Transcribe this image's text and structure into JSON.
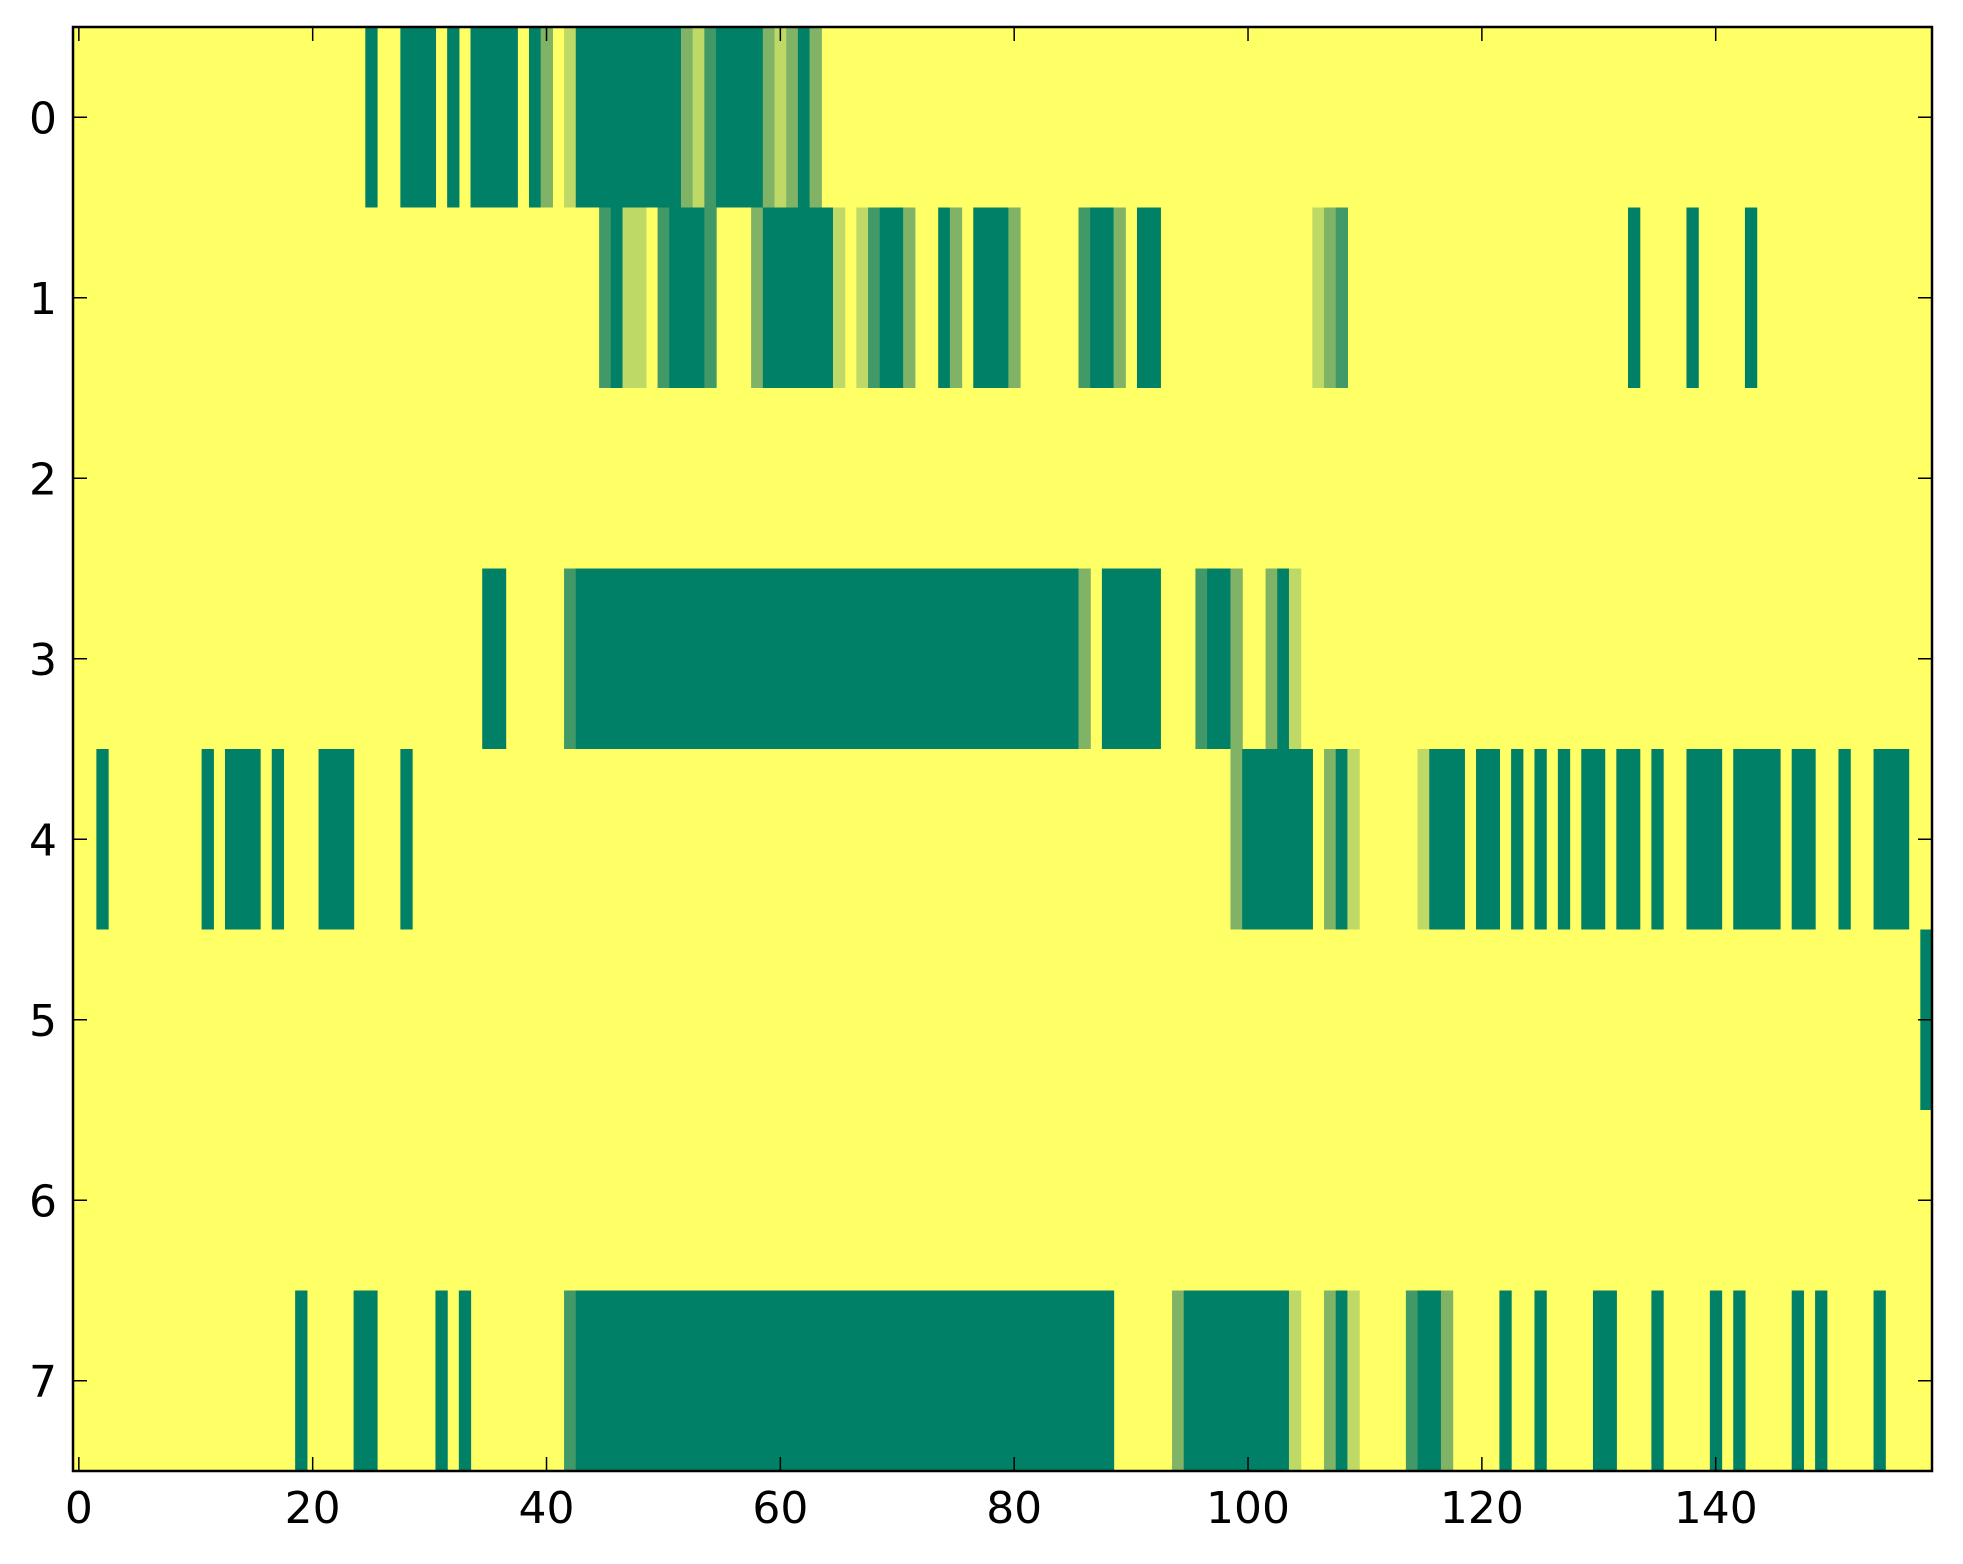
{
  "chart_data": {
    "type": "heatmap",
    "title": "",
    "xlabel": "",
    "ylabel": "",
    "xlim": [
      -0.5,
      158.5
    ],
    "ylim": [
      7.5,
      -0.5
    ],
    "x_ticks": [
      0,
      20,
      40,
      60,
      80,
      100,
      120,
      140
    ],
    "y_ticks": [
      0,
      1,
      2,
      3,
      4,
      5,
      6,
      7
    ],
    "colors": {
      "background": "#ffff66",
      "level_1": "#008066",
      "level_0_75": "#409966",
      "level_0_5": "#80b366",
      "level_0_25": "#bfd966"
    },
    "rows": [
      {
        "row": 0,
        "cells": [
          [
            25,
            1
          ],
          [
            28,
            1
          ],
          [
            29,
            1
          ],
          [
            30,
            1
          ],
          [
            32,
            1
          ],
          [
            34,
            1
          ],
          [
            35,
            1
          ],
          [
            36,
            1
          ],
          [
            37,
            1
          ],
          [
            39,
            1
          ],
          [
            40,
            0.5
          ],
          [
            42,
            0.25
          ],
          [
            43,
            1
          ],
          [
            44,
            1
          ],
          [
            45,
            1
          ],
          [
            46,
            1
          ],
          [
            47,
            1
          ],
          [
            48,
            1
          ],
          [
            49,
            1
          ],
          [
            50,
            1
          ],
          [
            51,
            1
          ],
          [
            52,
            0.5
          ],
          [
            53,
            0.25
          ],
          [
            54,
            0.75
          ],
          [
            55,
            1
          ],
          [
            56,
            1
          ],
          [
            57,
            1
          ],
          [
            58,
            1
          ],
          [
            59,
            0.5
          ],
          [
            60,
            0.25
          ],
          [
            61,
            0.5
          ],
          [
            62,
            1
          ],
          [
            63,
            0.5
          ]
        ]
      },
      {
        "row": 1,
        "cells": [
          [
            45,
            0.75
          ],
          [
            46,
            1
          ],
          [
            47,
            0.25
          ],
          [
            48,
            0.25
          ],
          [
            50,
            0.75
          ],
          [
            51,
            1
          ],
          [
            52,
            1
          ],
          [
            53,
            1
          ],
          [
            54,
            0.75
          ],
          [
            58,
            0.5
          ],
          [
            59,
            1
          ],
          [
            60,
            1
          ],
          [
            61,
            1
          ],
          [
            62,
            1
          ],
          [
            63,
            1
          ],
          [
            64,
            1
          ],
          [
            65,
            0.25
          ],
          [
            67,
            0.25
          ],
          [
            68,
            0.75
          ],
          [
            69,
            1
          ],
          [
            70,
            1
          ],
          [
            71,
            0.5
          ],
          [
            74,
            1
          ],
          [
            75,
            0.5
          ],
          [
            77,
            1
          ],
          [
            78,
            1
          ],
          [
            79,
            1
          ],
          [
            80,
            0.5
          ],
          [
            86,
            0.75
          ],
          [
            87,
            1
          ],
          [
            88,
            1
          ],
          [
            89,
            0.5
          ],
          [
            91,
            1
          ],
          [
            92,
            1
          ],
          [
            106,
            0.25
          ],
          [
            107,
            0.5
          ],
          [
            108,
            0.75
          ],
          [
            133,
            1
          ],
          [
            138,
            1
          ],
          [
            143,
            1
          ]
        ]
      },
      {
        "row": 2,
        "cells": []
      },
      {
        "row": 3,
        "cells": [
          [
            35,
            1
          ],
          [
            36,
            1
          ],
          [
            42,
            0.75
          ],
          [
            43,
            1
          ],
          [
            44,
            1
          ],
          [
            45,
            1
          ],
          [
            46,
            1
          ],
          [
            47,
            1
          ],
          [
            48,
            1
          ],
          [
            49,
            1
          ],
          [
            50,
            1
          ],
          [
            51,
            1
          ],
          [
            52,
            1
          ],
          [
            53,
            1
          ],
          [
            54,
            1
          ],
          [
            55,
            1
          ],
          [
            56,
            1
          ],
          [
            57,
            1
          ],
          [
            58,
            1
          ],
          [
            59,
            1
          ],
          [
            60,
            1
          ],
          [
            61,
            1
          ],
          [
            62,
            1
          ],
          [
            63,
            1
          ],
          [
            64,
            1
          ],
          [
            65,
            1
          ],
          [
            66,
            1
          ],
          [
            67,
            1
          ],
          [
            68,
            1
          ],
          [
            69,
            1
          ],
          [
            70,
            1
          ],
          [
            71,
            1
          ],
          [
            72,
            1
          ],
          [
            73,
            1
          ],
          [
            74,
            1
          ],
          [
            75,
            1
          ],
          [
            76,
            1
          ],
          [
            77,
            1
          ],
          [
            78,
            1
          ],
          [
            79,
            1
          ],
          [
            80,
            1
          ],
          [
            81,
            1
          ],
          [
            82,
            1
          ],
          [
            83,
            1
          ],
          [
            84,
            1
          ],
          [
            85,
            1
          ],
          [
            86,
            0.5
          ],
          [
            88,
            1
          ],
          [
            89,
            1
          ],
          [
            90,
            1
          ],
          [
            91,
            1
          ],
          [
            92,
            1
          ],
          [
            96,
            0.75
          ],
          [
            97,
            1
          ],
          [
            98,
            1
          ],
          [
            99,
            0.5
          ],
          [
            102,
            0.5
          ],
          [
            103,
            1
          ],
          [
            104,
            0.25
          ]
        ]
      },
      {
        "row": 4,
        "cells": [
          [
            2,
            1
          ],
          [
            11,
            1
          ],
          [
            13,
            1
          ],
          [
            14,
            1
          ],
          [
            15,
            1
          ],
          [
            17,
            1
          ],
          [
            21,
            1
          ],
          [
            22,
            1
          ],
          [
            23,
            1
          ],
          [
            28,
            1
          ],
          [
            99,
            0.5
          ],
          [
            100,
            1
          ],
          [
            101,
            1
          ],
          [
            102,
            1
          ],
          [
            103,
            1
          ],
          [
            104,
            1
          ],
          [
            105,
            1
          ],
          [
            107,
            0.5
          ],
          [
            108,
            1
          ],
          [
            109,
            0.25
          ],
          [
            115,
            0.25
          ],
          [
            116,
            1
          ],
          [
            117,
            1
          ],
          [
            118,
            1
          ],
          [
            120,
            1
          ],
          [
            121,
            1
          ],
          [
            123,
            1
          ],
          [
            125,
            1
          ],
          [
            127,
            1
          ],
          [
            129,
            1
          ],
          [
            130,
            1
          ],
          [
            132,
            1
          ],
          [
            133,
            1
          ],
          [
            135,
            1
          ],
          [
            138,
            1
          ],
          [
            139,
            1
          ],
          [
            140,
            1
          ],
          [
            142,
            1
          ],
          [
            143,
            1
          ],
          [
            144,
            1
          ],
          [
            145,
            1
          ],
          [
            147,
            1
          ],
          [
            148,
            1
          ],
          [
            151,
            1
          ],
          [
            154,
            1
          ],
          [
            155,
            1
          ],
          [
            156,
            1
          ]
        ]
      },
      {
        "row": 5,
        "cells": [
          [
            158,
            1
          ]
        ]
      },
      {
        "row": 6,
        "cells": []
      },
      {
        "row": 7,
        "cells": [
          [
            19,
            1
          ],
          [
            24,
            1
          ],
          [
            25,
            1
          ],
          [
            31,
            1
          ],
          [
            33,
            1
          ],
          [
            42,
            0.75
          ],
          [
            43,
            1
          ],
          [
            44,
            1
          ],
          [
            45,
            1
          ],
          [
            46,
            1
          ],
          [
            47,
            1
          ],
          [
            48,
            1
          ],
          [
            49,
            1
          ],
          [
            50,
            1
          ],
          [
            51,
            1
          ],
          [
            52,
            1
          ],
          [
            53,
            1
          ],
          [
            54,
            1
          ],
          [
            55,
            1
          ],
          [
            56,
            1
          ],
          [
            57,
            1
          ],
          [
            58,
            1
          ],
          [
            59,
            1
          ],
          [
            60,
            1
          ],
          [
            61,
            1
          ],
          [
            62,
            1
          ],
          [
            63,
            1
          ],
          [
            64,
            1
          ],
          [
            65,
            1
          ],
          [
            66,
            1
          ],
          [
            67,
            1
          ],
          [
            68,
            1
          ],
          [
            69,
            1
          ],
          [
            70,
            1
          ],
          [
            71,
            1
          ],
          [
            72,
            1
          ],
          [
            73,
            1
          ],
          [
            74,
            1
          ],
          [
            75,
            1
          ],
          [
            76,
            1
          ],
          [
            77,
            1
          ],
          [
            78,
            1
          ],
          [
            79,
            1
          ],
          [
            80,
            1
          ],
          [
            81,
            1
          ],
          [
            82,
            1
          ],
          [
            83,
            1
          ],
          [
            84,
            1
          ],
          [
            85,
            1
          ],
          [
            86,
            1
          ],
          [
            87,
            1
          ],
          [
            88,
            1
          ],
          [
            94,
            0.5
          ],
          [
            95,
            1
          ],
          [
            96,
            1
          ],
          [
            97,
            1
          ],
          [
            98,
            1
          ],
          [
            99,
            1
          ],
          [
            100,
            1
          ],
          [
            101,
            1
          ],
          [
            102,
            1
          ],
          [
            103,
            1
          ],
          [
            104,
            0.25
          ],
          [
            107,
            0.5
          ],
          [
            108,
            1
          ],
          [
            109,
            0.25
          ],
          [
            114,
            0.75
          ],
          [
            115,
            1
          ],
          [
            116,
            1
          ],
          [
            117,
            0.5
          ],
          [
            122,
            1
          ],
          [
            125,
            1
          ],
          [
            130,
            1
          ],
          [
            131,
            1
          ],
          [
            135,
            1
          ],
          [
            140,
            1
          ],
          [
            142,
            1
          ],
          [
            147,
            1
          ],
          [
            149,
            1
          ],
          [
            154,
            1
          ]
        ]
      }
    ]
  }
}
